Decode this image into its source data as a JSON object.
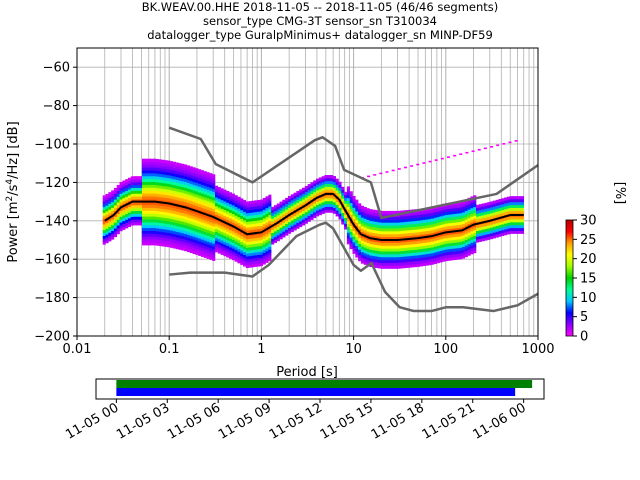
{
  "title_lines": [
    "BK.WEAV.00.HHE   2018-11-05 -- 2018-11-05  (46/46 segments)",
    "sensor_type CMG-3T sensor_sn T310034",
    "datalogger_type GuralpMinimus+ datalogger_sn MINP-DF59"
  ],
  "chart_data": [
    {
      "type": "heatmap",
      "xlabel": "Period [s]",
      "ylabel_parts": [
        "Power [m",
        "2",
        "/s",
        "4",
        "/Hz] [dB]"
      ],
      "xscale": "log",
      "xlim": [
        0.01,
        1000
      ],
      "ylim": [
        -200,
        -50
      ],
      "xticks": [
        0.01,
        0.1,
        1,
        10,
        100,
        1000
      ],
      "xtick_labels": [
        "0.01",
        "0.1",
        "1",
        "10",
        "100",
        "1000"
      ],
      "yticks": [
        -60,
        -80,
        -100,
        -120,
        -140,
        -160,
        -180,
        -200
      ],
      "ytick_labels": [
        "−60",
        "−80",
        "−100",
        "−120",
        "−140",
        "−160",
        "−180",
        "−200"
      ],
      "grid": true,
      "mode_curve": {
        "x": [
          0.02,
          0.025,
          0.03,
          0.04,
          0.05,
          0.07,
          0.1,
          0.15,
          0.2,
          0.3,
          0.5,
          0.7,
          1,
          1.5,
          2,
          3,
          4,
          5,
          6,
          7,
          8,
          10,
          12,
          15,
          20,
          30,
          50,
          70,
          100,
          150,
          200,
          300,
          500,
          700
        ],
        "y": [
          -140,
          -137,
          -133,
          -130,
          -130,
          -130,
          -131,
          -133,
          -135,
          -138,
          -143,
          -147,
          -146,
          -141,
          -137,
          -132,
          -128,
          -126,
          -126,
          -129,
          -134,
          -142,
          -147,
          -149,
          -150,
          -150,
          -149,
          -148,
          -146,
          -145,
          -142,
          -140,
          -137,
          -137
        ]
      },
      "nlnm": {
        "x": [
          0.1,
          0.17,
          0.4,
          0.8,
          1.2,
          2.4,
          4.3,
          5,
          6,
          10,
          12,
          15.6,
          21.9,
          31.6,
          45,
          70,
          101,
          154,
          328,
          600,
          1000
        ],
        "y": [
          -168,
          -167,
          -167,
          -169,
          -163,
          -148,
          -142,
          -141,
          -144,
          -163,
          -166,
          -162,
          -177,
          -185,
          -187,
          -187,
          -185,
          -185,
          -187,
          -184,
          -178
        ]
      },
      "nhnm": {
        "x": [
          0.1,
          0.22,
          0.32,
          0.8,
          3.8,
          4.6,
          6.3,
          7.9,
          15.4,
          20,
          354.8,
          1000
        ],
        "y": [
          -91.5,
          -97.4,
          -110.5,
          -120,
          -98,
          -96.5,
          -101,
          -113.5,
          -120,
          -138.5,
          -126,
          -111
        ]
      },
      "colorbar": {
        "label": "[%]",
        "ticks": [
          0,
          5,
          10,
          15,
          20,
          25,
          30
        ],
        "tick_labels": [
          "0",
          "5",
          "10",
          "15",
          "20",
          "25",
          "30"
        ],
        "colors": [
          "#ffffff",
          "#ff00ff",
          "#8c00ff",
          "#0000ff",
          "#00c8ff",
          "#00ff96",
          "#00d000",
          "#a0ff00",
          "#ffff00",
          "#ffa000",
          "#ff0000",
          "#b40000"
        ]
      }
    },
    {
      "type": "timeline",
      "xtick_labels": [
        "11-05 00",
        "11-05 03",
        "11-05 06",
        "11-05 09",
        "11-05 12",
        "11-05 15",
        "11-05 18",
        "11-05 21",
        "11-06 00"
      ],
      "xtick_hours": [
        0,
        3,
        6,
        9,
        12,
        15,
        18,
        21,
        24
      ],
      "xlim_hours": [
        -1.2,
        25.2
      ],
      "bars": [
        {
          "start_hours": 0,
          "end_hours": 24.5,
          "color": "#008000"
        },
        {
          "start_hours": 0,
          "end_hours": 23.5,
          "color": "#0000ff"
        }
      ]
    }
  ]
}
